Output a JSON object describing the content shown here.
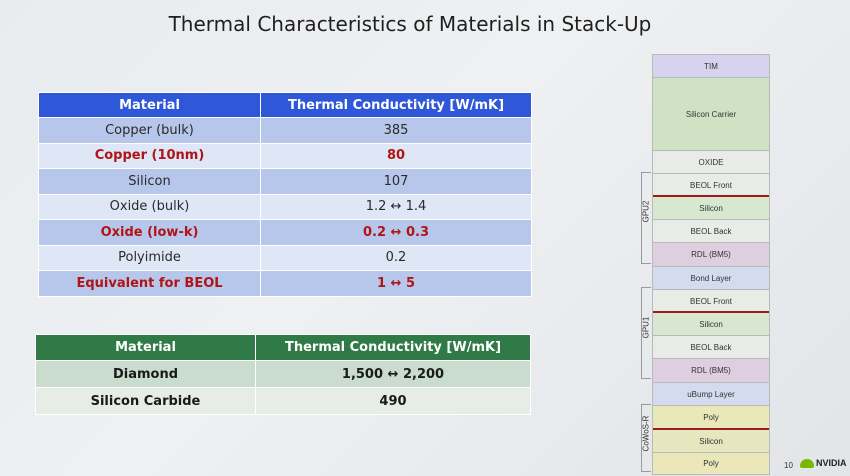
{
  "title": "Thermal Characteristics of Materials in Stack-Up",
  "table1": {
    "headers": [
      "Material",
      "Thermal Conductivity [W/mK]"
    ],
    "rows": [
      {
        "material": "Copper (bulk)",
        "value": "385"
      },
      {
        "material": "Copper (10nm)",
        "value": "80"
      },
      {
        "material": "Silicon",
        "value": "107"
      },
      {
        "material": "Oxide (bulk)",
        "value": "1.2 ↔ 1.4"
      },
      {
        "material": "Oxide (low-k)",
        "value": "0.2 ↔ 0.3"
      },
      {
        "material": "Polyimide",
        "value": "0.2"
      },
      {
        "material": "Equivalent for BEOL",
        "value": "1 ↔ 5"
      }
    ],
    "highlight_color": "#b01515"
  },
  "table2": {
    "headers": [
      "Material",
      "Thermal Conductivity [W/mK]"
    ],
    "rows": [
      {
        "material": "Diamond",
        "value": "1,500 ↔ 2,200"
      },
      {
        "material": "Silicon Carbide",
        "value": "490"
      }
    ]
  },
  "stack": {
    "layers": [
      "TIM",
      "Silicon Carrier",
      "OXIDE",
      "BEOL Front",
      "Silicon",
      "BEOL Back",
      "RDL (BM5)",
      "Bond Layer",
      "BEOL Front",
      "Silicon",
      "BEOL Back",
      "RDL (BM5)",
      "uBump Layer",
      "Poly",
      "Silicon",
      "Poly"
    ],
    "groups": [
      "GPU2",
      "GPU1",
      "CoWoS-R"
    ]
  },
  "page_number": "10",
  "brand": "NVIDIA",
  "colors": {
    "table1_header": "#2f58d9",
    "table2_header": "#2f7a47",
    "accent_red": "#b01515",
    "nvidia_green": "#76b900"
  }
}
